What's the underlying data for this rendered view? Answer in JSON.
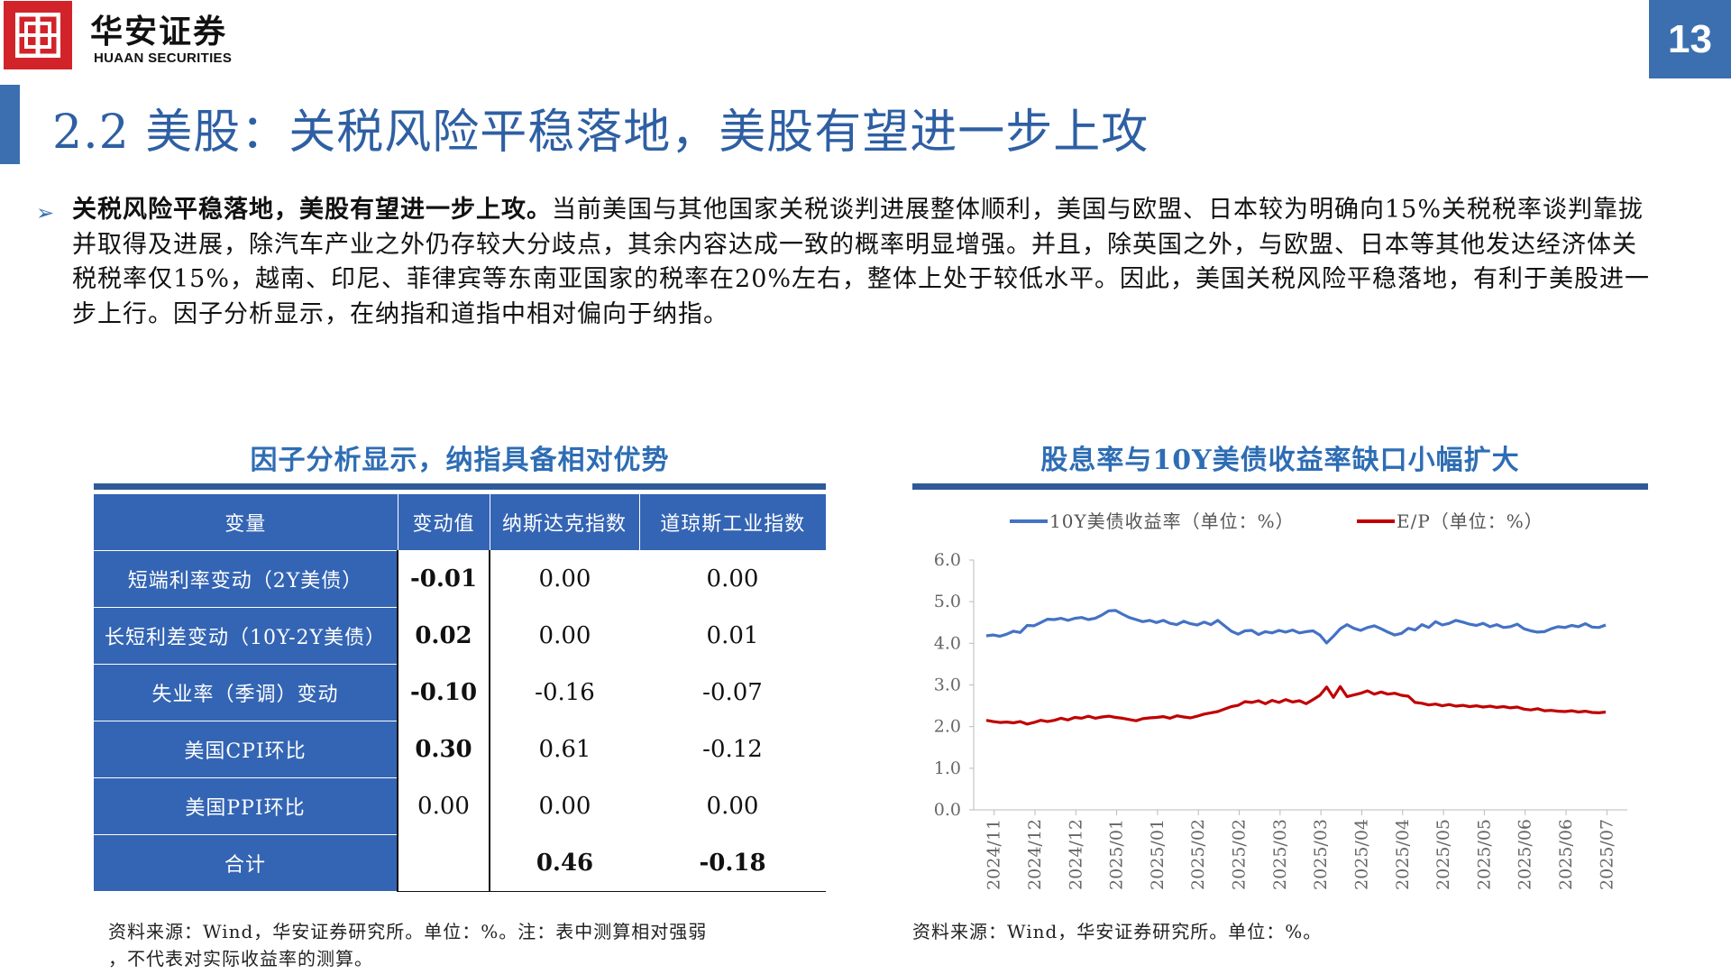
{
  "header": {
    "brand_cn": "华安证券",
    "brand_en": "HUAAN SECURITIES",
    "page_number": "13",
    "logo_color": "#d2232a",
    "accent_color": "#3b6fb0"
  },
  "title": "2.2 美股：关税风险平稳落地，美股有望进一步上攻",
  "body": {
    "bold_lead": "关税风险平稳落地，美股有望进一步上攻。",
    "text": "当前美国与其他国家关税谈判进展整体顺利，美国与欧盟、日本较为明确向15%关税税率谈判靠拢并取得及进展，除汽车产业之外仍存较大分歧点，其余内容达成一致的概率明显增强。并且，除英国之外，与欧盟、日本等其他发达经济体关税税率仅15%，越南、印尼、菲律宾等东南亚国家的税率在20%左右，整体上处于较低水平。因此，美国关税风险平稳落地，有利于美股进一步上行。因子分析显示，在纳指和道指中相对偏向于纳指。"
  },
  "left": {
    "title": "因子分析显示，纳指具备相对优势",
    "headers": [
      "变量",
      "变动值",
      "纳斯达克指数",
      "道琼斯工业指数"
    ],
    "rows": [
      {
        "label": "短端利率变动（2Y美债）",
        "change": "-0.01",
        "nasdaq": "0.00",
        "dow": "0.00"
      },
      {
        "label": "长短利差变动（10Y-2Y美债）",
        "change": "0.02",
        "nasdaq": "0.00",
        "dow": "0.01"
      },
      {
        "label": "失业率（季调）变动",
        "change": "-0.10",
        "nasdaq": "-0.16",
        "dow": "-0.07"
      },
      {
        "label": "美国CPI环比",
        "change": "0.30",
        "nasdaq": "0.61",
        "dow": "-0.12"
      },
      {
        "label": "美国PPI环比",
        "change": "0.00",
        "nasdaq": "0.00",
        "dow": "0.00"
      },
      {
        "label": "合计",
        "change": "",
        "nasdaq": "0.46",
        "dow": "-0.18"
      }
    ],
    "source_line1": "资料来源：Wind，华安证券研究所。单位：%。注：表中测算相对强弱",
    "source_line2": "，不代表对实际收益率的测算。"
  },
  "right": {
    "title": "股息率与10Y美债收益率缺口小幅扩大",
    "source": "资料来源：Wind，华安证券研究所。单位：%。"
  },
  "chart_data": {
    "type": "line",
    "title": "股息率与10Y美债收益率缺口小幅扩大",
    "ylim": [
      0,
      6
    ],
    "yticks": [
      "0.0",
      "1.0",
      "2.0",
      "3.0",
      "4.0",
      "5.0",
      "6.0"
    ],
    "xticks": [
      "2024/11",
      "2024/12",
      "2024/12",
      "2025/01",
      "2025/01",
      "2025/02",
      "2025/02",
      "2025/03",
      "2025/03",
      "2025/04",
      "2025/04",
      "2025/05",
      "2025/05",
      "2025/06",
      "2025/06",
      "2025/07"
    ],
    "legend_position": "top",
    "grid": false,
    "series": [
      {
        "name": "10Y美债收益率（单位：%）",
        "color": "#4472c4",
        "values": [
          4.18,
          4.2,
          4.17,
          4.22,
          4.29,
          4.26,
          4.43,
          4.42,
          4.5,
          4.58,
          4.57,
          4.6,
          4.55,
          4.6,
          4.62,
          4.57,
          4.6,
          4.68,
          4.78,
          4.79,
          4.7,
          4.62,
          4.57,
          4.52,
          4.55,
          4.5,
          4.55,
          4.48,
          4.45,
          4.53,
          4.47,
          4.44,
          4.51,
          4.45,
          4.55,
          4.42,
          4.29,
          4.22,
          4.3,
          4.31,
          4.21,
          4.28,
          4.25,
          4.31,
          4.27,
          4.32,
          4.25,
          4.28,
          4.3,
          4.2,
          4.01,
          4.17,
          4.35,
          4.45,
          4.36,
          4.31,
          4.38,
          4.42,
          4.35,
          4.27,
          4.2,
          4.24,
          4.36,
          4.32,
          4.45,
          4.38,
          4.52,
          4.44,
          4.48,
          4.55,
          4.51,
          4.46,
          4.43,
          4.48,
          4.4,
          4.45,
          4.38,
          4.4,
          4.46,
          4.35,
          4.3,
          4.27,
          4.28,
          4.35,
          4.4,
          4.38,
          4.43,
          4.4,
          4.47,
          4.39,
          4.38,
          4.44
        ]
      },
      {
        "name": "E/P（单位：%）",
        "color": "#c00000",
        "values": [
          2.15,
          2.12,
          2.1,
          2.11,
          2.09,
          2.12,
          2.06,
          2.1,
          2.15,
          2.12,
          2.15,
          2.2,
          2.16,
          2.22,
          2.2,
          2.25,
          2.2,
          2.23,
          2.25,
          2.22,
          2.2,
          2.17,
          2.14,
          2.19,
          2.21,
          2.22,
          2.24,
          2.2,
          2.26,
          2.23,
          2.21,
          2.25,
          2.3,
          2.33,
          2.36,
          2.42,
          2.48,
          2.51,
          2.6,
          2.58,
          2.62,
          2.55,
          2.63,
          2.58,
          2.65,
          2.59,
          2.62,
          2.55,
          2.65,
          2.75,
          2.95,
          2.7,
          2.96,
          2.72,
          2.76,
          2.8,
          2.86,
          2.78,
          2.83,
          2.78,
          2.8,
          2.75,
          2.73,
          2.58,
          2.56,
          2.52,
          2.54,
          2.5,
          2.53,
          2.49,
          2.51,
          2.48,
          2.5,
          2.47,
          2.49,
          2.46,
          2.48,
          2.45,
          2.47,
          2.42,
          2.4,
          2.43,
          2.38,
          2.39,
          2.37,
          2.36,
          2.38,
          2.35,
          2.37,
          2.34,
          2.33,
          2.35
        ]
      }
    ]
  }
}
